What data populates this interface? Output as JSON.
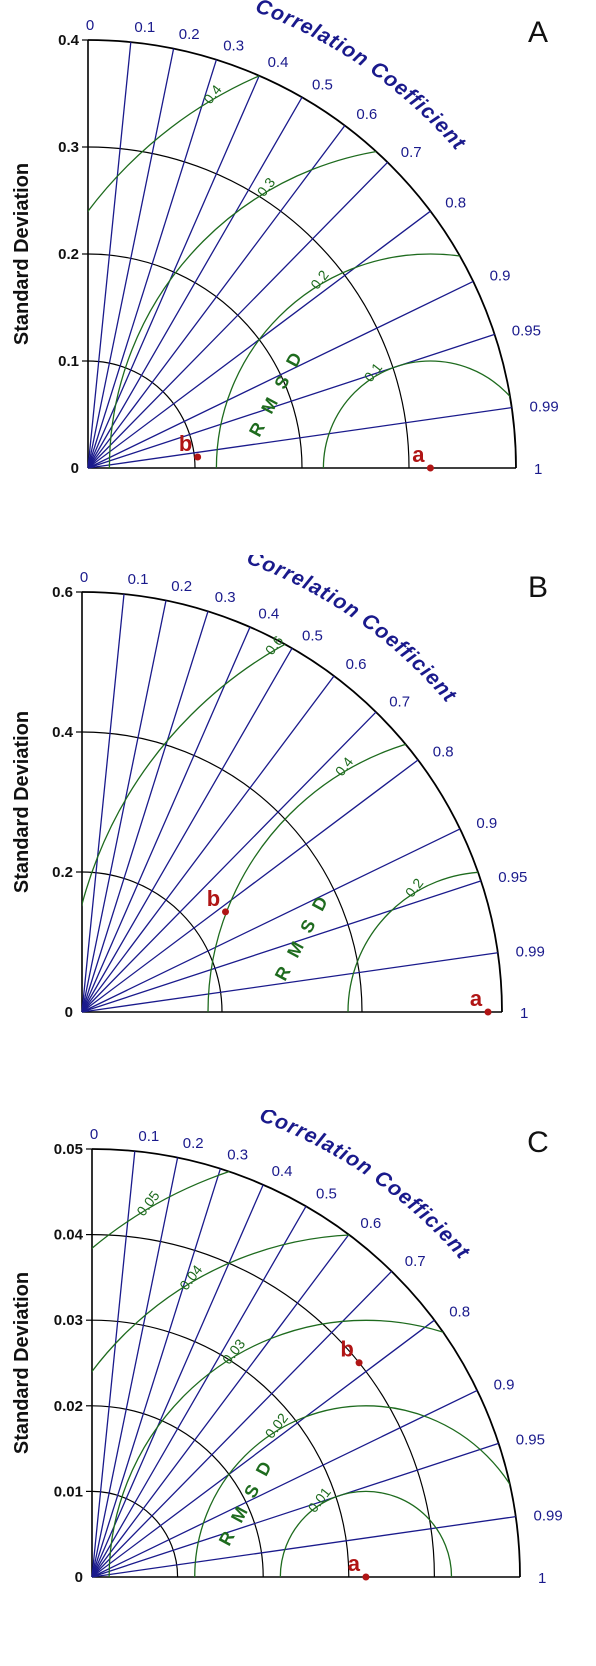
{
  "chart_data": [
    {
      "type": "taylor",
      "panel_label": "A",
      "ylabel": "Standard Deviation",
      "arc_label": "Correlation Coefficient",
      "rmsd_label": "R M S D",
      "sd_max": 0.4,
      "sd_ticks": [
        {
          "v": 0,
          "label": "0"
        },
        {
          "v": 0.1,
          "label": "0.1"
        },
        {
          "v": 0.2,
          "label": "0.2"
        },
        {
          "v": 0.3,
          "label": "0.3"
        },
        {
          "v": 0.4,
          "label": "0.4"
        }
      ],
      "rmsd_ref": 0.32,
      "rmsd_arcs": [
        {
          "v": 0.1,
          "label": "0.1"
        },
        {
          "v": 0.2,
          "label": "0.2"
        },
        {
          "v": 0.3,
          "label": "0.3"
        },
        {
          "v": 0.4,
          "label": "0.4"
        }
      ],
      "correlation_ticks": [
        "0",
        "0.1",
        "0.2",
        "0.3",
        "0.4",
        "0.5",
        "0.6",
        "0.7",
        "0.8",
        "0.9",
        "0.95",
        "0.99",
        "1"
      ],
      "points": [
        {
          "label": "a",
          "sd": 0.32,
          "corr": 1.0
        },
        {
          "label": "b",
          "sd": 0.103,
          "corr": 0.995
        }
      ]
    },
    {
      "type": "taylor",
      "panel_label": "B",
      "ylabel": "Standard Deviation",
      "arc_label": "Correlation Coefficient",
      "rmsd_label": "R M S D",
      "sd_max": 0.6,
      "sd_ticks": [
        {
          "v": 0,
          "label": "0"
        },
        {
          "v": 0.2,
          "label": "0.2"
        },
        {
          "v": 0.4,
          "label": "0.4"
        },
        {
          "v": 0.6,
          "label": "0.6"
        }
      ],
      "rmsd_ref": 0.58,
      "rmsd_arcs": [
        {
          "v": 0.2,
          "label": "0.2"
        },
        {
          "v": 0.4,
          "label": "0.4"
        },
        {
          "v": 0.6,
          "label": "0.6"
        }
      ],
      "correlation_ticks": [
        "0",
        "0.1",
        "0.2",
        "0.3",
        "0.4",
        "0.5",
        "0.6",
        "0.7",
        "0.8",
        "0.9",
        "0.95",
        "0.99",
        "1"
      ],
      "points": [
        {
          "label": "a",
          "sd": 0.58,
          "corr": 1.0
        },
        {
          "label": "b",
          "sd": 0.25,
          "corr": 0.82
        }
      ]
    },
    {
      "type": "taylor",
      "panel_label": "C",
      "ylabel": "Standard Deviation",
      "arc_label": "Correlation Coefficient",
      "rmsd_label": "R M S D",
      "sd_max": 0.05,
      "sd_ticks": [
        {
          "v": 0,
          "label": "0"
        },
        {
          "v": 0.01,
          "label": "0.01"
        },
        {
          "v": 0.02,
          "label": "0.02"
        },
        {
          "v": 0.03,
          "label": "0.03"
        },
        {
          "v": 0.04,
          "label": "0.04"
        },
        {
          "v": 0.05,
          "label": "0.05"
        }
      ],
      "rmsd_ref": 0.032,
      "rmsd_arcs": [
        {
          "v": 0.01,
          "label": "0.01"
        },
        {
          "v": 0.02,
          "label": "0.02"
        },
        {
          "v": 0.03,
          "label": "0.03"
        },
        {
          "v": 0.04,
          "label": "0.04"
        },
        {
          "v": 0.05,
          "label": "0.05"
        }
      ],
      "correlation_ticks": [
        "0",
        "0.1",
        "0.2",
        "0.3",
        "0.4",
        "0.5",
        "0.6",
        "0.7",
        "0.8",
        "0.9",
        "0.95",
        "0.99",
        "1"
      ],
      "points": [
        {
          "label": "a",
          "sd": 0.032,
          "corr": 1.0
        },
        {
          "label": "b",
          "sd": 0.04,
          "corr": 0.78
        }
      ]
    }
  ],
  "colors": {
    "axis": "#000000",
    "sd_arc": "#000000",
    "correlation": "#1a1a8c",
    "rmsd": "#1e6b1e",
    "point": "#b01515"
  }
}
